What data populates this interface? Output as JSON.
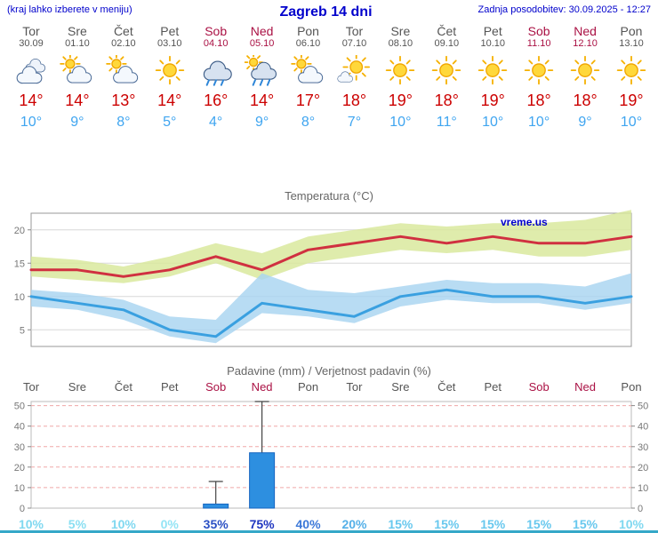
{
  "header": {
    "note": "(kraj lahko izberete v meniju)",
    "title": "Zagreb 14 dni",
    "updated": "Zadnja posodobitev: 30.09.2025 - 12:27"
  },
  "watermark": "vreme.us",
  "days": [
    {
      "name": "Tor",
      "date": "30.09",
      "weekend": false,
      "icon": "cloudy",
      "tmax": "14°",
      "tmin": "10°",
      "prob": "10%",
      "prob_color": "#7fd8f0"
    },
    {
      "name": "Sre",
      "date": "01.10",
      "weekend": false,
      "icon": "partly",
      "tmax": "14°",
      "tmin": "9°",
      "prob": "5%",
      "prob_color": "#8adff2"
    },
    {
      "name": "Čet",
      "date": "02.10",
      "weekend": false,
      "icon": "partly",
      "tmax": "13°",
      "tmin": "8°",
      "prob": "10%",
      "prob_color": "#7fd8f0"
    },
    {
      "name": "Pet",
      "date": "03.10",
      "weekend": false,
      "icon": "sunny",
      "tmax": "14°",
      "tmin": "5°",
      "prob": "0%",
      "prob_color": "#93e4f5"
    },
    {
      "name": "Sob",
      "date": "04.10",
      "weekend": true,
      "icon": "rain",
      "tmax": "16°",
      "tmin": "4°",
      "prob": "35%",
      "prob_color": "#2b50c4"
    },
    {
      "name": "Ned",
      "date": "05.10",
      "weekend": true,
      "icon": "rain-sun",
      "tmax": "14°",
      "tmin": "9°",
      "prob": "75%",
      "prob_color": "#1f36c0"
    },
    {
      "name": "Pon",
      "date": "06.10",
      "weekend": false,
      "icon": "partly",
      "tmax": "17°",
      "tmin": "8°",
      "prob": "40%",
      "prob_color": "#3c78d8"
    },
    {
      "name": "Tor",
      "date": "07.10",
      "weekend": false,
      "icon": "mostly-sunny",
      "tmax": "18°",
      "tmin": "7°",
      "prob": "20%",
      "prob_color": "#54b0e8"
    },
    {
      "name": "Sre",
      "date": "08.10",
      "weekend": false,
      "icon": "sunny",
      "tmax": "19°",
      "tmin": "10°",
      "prob": "15%",
      "prob_color": "#68c8ee"
    },
    {
      "name": "Čet",
      "date": "09.10",
      "weekend": false,
      "icon": "sunny",
      "tmax": "18°",
      "tmin": "11°",
      "prob": "15%",
      "prob_color": "#68c8ee"
    },
    {
      "name": "Pet",
      "date": "10.10",
      "weekend": false,
      "icon": "sunny",
      "tmax": "19°",
      "tmin": "10°",
      "prob": "15%",
      "prob_color": "#68c8ee"
    },
    {
      "name": "Sob",
      "date": "11.10",
      "weekend": true,
      "icon": "sunny",
      "tmax": "18°",
      "tmin": "10°",
      "prob": "15%",
      "prob_color": "#68c8ee"
    },
    {
      "name": "Ned",
      "date": "12.10",
      "weekend": true,
      "icon": "sunny",
      "tmax": "18°",
      "tmin": "9°",
      "prob": "15%",
      "prob_color": "#68c8ee"
    },
    {
      "name": "Pon",
      "date": "13.10",
      "weekend": false,
      "icon": "sunny",
      "tmax": "19°",
      "tmin": "10°",
      "prob": "10%",
      "prob_color": "#7fd8f0"
    }
  ],
  "chart_data": [
    {
      "type": "line",
      "title": "Temperatura (°C)",
      "categories": [
        "30.09",
        "01.10",
        "02.10",
        "03.10",
        "04.10",
        "05.10",
        "06.10",
        "07.10",
        "08.10",
        "09.10",
        "10.10",
        "11.10",
        "12.10",
        "13.10"
      ],
      "series": [
        {
          "name": "max temperature",
          "color": "#d03040",
          "values": [
            14,
            14,
            13,
            14,
            16,
            14,
            17,
            18,
            19,
            18,
            19,
            18,
            18,
            19
          ]
        },
        {
          "name": "min temperature",
          "color": "#3aa0e0",
          "values": [
            10,
            9,
            8,
            5,
            4,
            9,
            8,
            7,
            10,
            11,
            10,
            10,
            9,
            10
          ]
        }
      ],
      "bands": [
        {
          "name": "max-range",
          "color": "#d8e89a",
          "upper": [
            16,
            15.5,
            14.5,
            16,
            18,
            16.5,
            19,
            20,
            21,
            20.5,
            21,
            21,
            21.5,
            23
          ],
          "lower": [
            13,
            12.5,
            12,
            13,
            15,
            12.5,
            15,
            16,
            17,
            16.5,
            17,
            16,
            16,
            17
          ]
        },
        {
          "name": "min-range",
          "color": "#a8d4f0",
          "upper": [
            11,
            10.5,
            9.5,
            7,
            6.5,
            13.5,
            11,
            10.5,
            11.5,
            12.5,
            12,
            12,
            11.5,
            13.5
          ],
          "lower": [
            8.5,
            8,
            6.5,
            4,
            3,
            7.5,
            7,
            6,
            8.5,
            9.5,
            9,
            9,
            8,
            9
          ]
        }
      ],
      "ylim": [
        2.5,
        22.5
      ],
      "yticks": [
        5,
        10,
        15,
        20
      ],
      "grid": true,
      "legend_position": "none"
    },
    {
      "type": "bar",
      "title": "Padavine (mm) / Verjetnost padavin (%)",
      "categories": [
        "Tor",
        "Sre",
        "Čet",
        "Pet",
        "Sob",
        "Ned",
        "Pon",
        "Tor",
        "Sre",
        "Čet",
        "Pet",
        "Sob",
        "Ned",
        "Pon"
      ],
      "values": [
        0,
        0,
        0,
        0,
        2,
        27,
        0,
        0,
        0,
        0,
        0,
        0,
        0,
        0
      ],
      "whisker_max": [
        0,
        0,
        0,
        0,
        13,
        52,
        0,
        0,
        0,
        0,
        0,
        0,
        0,
        0
      ],
      "probabilities_percent": [
        10,
        5,
        10,
        0,
        35,
        75,
        40,
        20,
        15,
        15,
        15,
        15,
        15,
        10
      ],
      "ylim": [
        0,
        52
      ],
      "yticks": [
        0,
        10,
        20,
        30,
        40,
        50
      ],
      "bar_color": "#2d8fe0",
      "bar_border": "#1565c0",
      "grid": true
    }
  ]
}
